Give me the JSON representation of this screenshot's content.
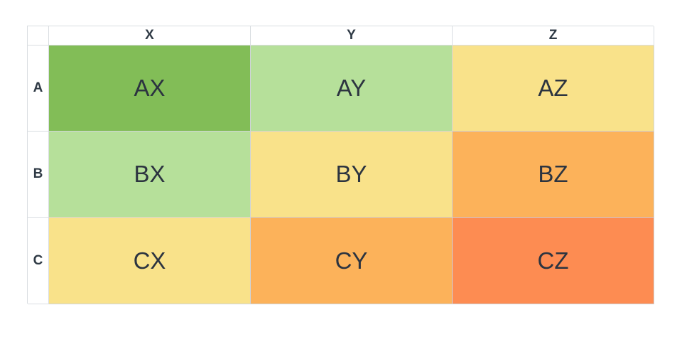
{
  "column_headers": [
    "X",
    "Y",
    "Z"
  ],
  "row_headers": [
    "A",
    "B",
    "C"
  ],
  "cells": [
    [
      {
        "label": "AX",
        "color": "#82bd57"
      },
      {
        "label": "AY",
        "color": "#b6e09a"
      },
      {
        "label": "AZ",
        "color": "#f9e28a"
      }
    ],
    [
      {
        "label": "BX",
        "color": "#b6e09a"
      },
      {
        "label": "BY",
        "color": "#f9e28a"
      },
      {
        "label": "BZ",
        "color": "#fcb25a"
      }
    ],
    [
      {
        "label": "CX",
        "color": "#f9e28a"
      },
      {
        "label": "CY",
        "color": "#fcb25a"
      },
      {
        "label": "CZ",
        "color": "#fd8c52"
      }
    ]
  ]
}
